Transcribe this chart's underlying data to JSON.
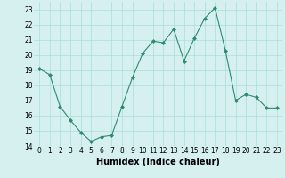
{
  "x": [
    0,
    1,
    2,
    3,
    4,
    5,
    6,
    7,
    8,
    9,
    10,
    11,
    12,
    13,
    14,
    15,
    16,
    17,
    18,
    19,
    20,
    21,
    22,
    23
  ],
  "y": [
    19.1,
    18.7,
    16.6,
    15.7,
    14.9,
    14.3,
    14.6,
    14.7,
    16.6,
    18.5,
    20.1,
    20.9,
    20.8,
    21.7,
    19.6,
    21.1,
    22.4,
    23.1,
    20.3,
    17.0,
    17.4,
    17.2,
    16.5,
    16.5
  ],
  "line_color": "#2e8b6e",
  "marker": "D",
  "marker_size": 2,
  "bg_color": "#d6f0f0",
  "grid_color": "#aadddd",
  "xlabel": "Humidex (Indice chaleur)",
  "xlim": [
    -0.5,
    23.5
  ],
  "ylim": [
    14,
    23.5
  ],
  "yticks": [
    14,
    15,
    16,
    17,
    18,
    19,
    20,
    21,
    22,
    23
  ],
  "xticks": [
    0,
    1,
    2,
    3,
    4,
    5,
    6,
    7,
    8,
    9,
    10,
    11,
    12,
    13,
    14,
    15,
    16,
    17,
    18,
    19,
    20,
    21,
    22,
    23
  ],
  "tick_fontsize": 5.5,
  "xlabel_fontsize": 7
}
